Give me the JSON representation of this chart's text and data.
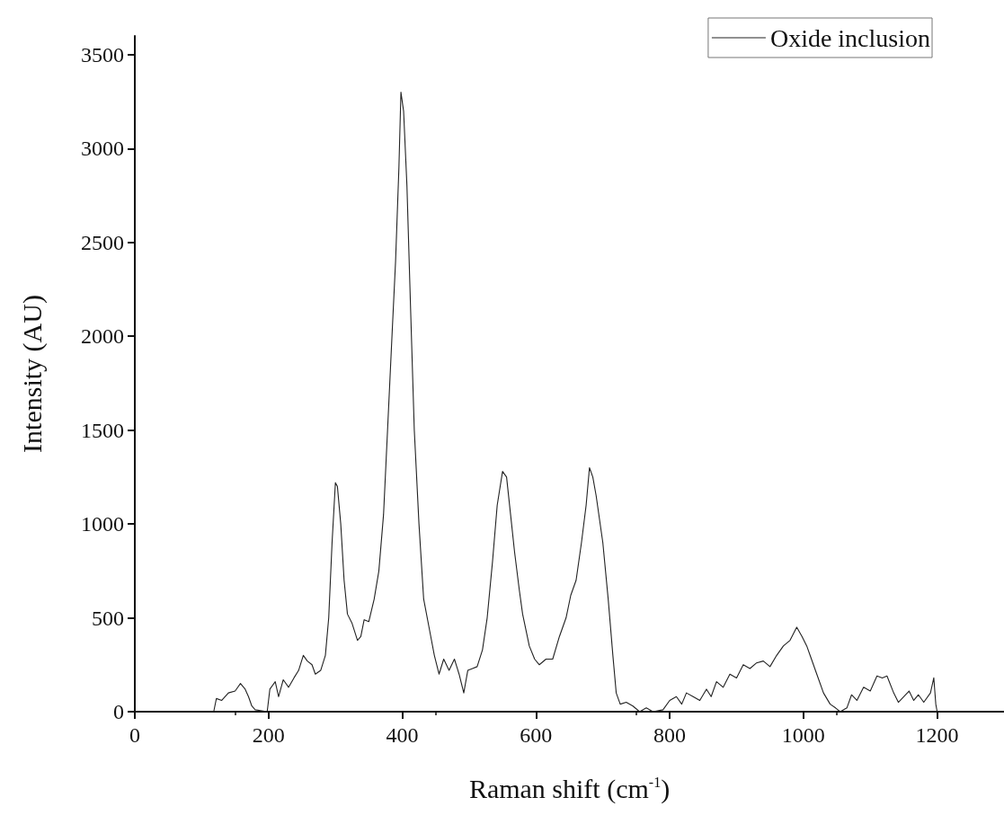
{
  "chart_data": {
    "type": "line",
    "xlabel": "Raman shift (cm$^{-1}$)",
    "ylabel": "Intensity (AU)",
    "xlim": [
      0,
      1300
    ],
    "xticks": [
      0,
      200,
      400,
      600,
      800,
      1000,
      1200
    ],
    "ylim": [
      0,
      3600
    ],
    "yticks": [
      0,
      500,
      1000,
      1500,
      2000,
      2500,
      3000,
      3500
    ],
    "grid": false,
    "legend": "top right",
    "marker": "none",
    "line_style": "solid",
    "series": [
      {
        "name": "Oxide inclusion",
        "color": "#222222",
        "x": [
          118,
          122,
          130,
          140,
          150,
          158,
          165,
          170,
          175,
          180,
          190,
          198,
          202,
          210,
          215,
          222,
          230,
          238,
          245,
          252,
          258,
          265,
          270,
          278,
          285,
          290,
          295,
          300,
          303,
          308,
          313,
          318,
          325,
          333,
          338,
          343,
          350,
          358,
          365,
          372,
          378,
          385,
          390,
          395,
          398,
          402,
          407,
          412,
          418,
          425,
          432,
          440,
          448,
          455,
          462,
          470,
          478,
          485,
          492,
          498,
          505,
          512,
          520,
          527,
          535,
          542,
          550,
          556,
          562,
          568,
          575,
          580,
          590,
          598,
          605,
          615,
          625,
          635,
          645,
          652,
          660,
          668,
          675,
          680,
          685,
          690,
          700,
          708,
          715,
          720,
          726,
          735,
          745,
          755,
          765,
          775,
          790,
          800,
          810,
          818,
          825,
          835,
          845,
          855,
          862,
          870,
          880,
          890,
          900,
          910,
          920,
          930,
          940,
          950,
          960,
          970,
          980,
          990,
          998,
          1005,
          1012,
          1020,
          1030,
          1040,
          1048,
          1055,
          1065,
          1072,
          1080,
          1090,
          1100,
          1110,
          1118,
          1125,
          1135,
          1142,
          1150,
          1158,
          1165,
          1172,
          1180,
          1190,
          1195,
          1198,
          1200
        ],
        "values": [
          0,
          70,
          60,
          100,
          110,
          150,
          120,
          80,
          30,
          10,
          5,
          0,
          120,
          160,
          80,
          170,
          130,
          180,
          220,
          300,
          270,
          250,
          200,
          220,
          300,
          500,
          900,
          1220,
          1200,
          1000,
          700,
          520,
          470,
          380,
          400,
          490,
          480,
          600,
          750,
          1050,
          1500,
          2030,
          2400,
          2900,
          3300,
          3200,
          2800,
          2200,
          1500,
          1000,
          600,
          450,
          300,
          200,
          280,
          220,
          280,
          200,
          100,
          220,
          230,
          240,
          330,
          500,
          800,
          1100,
          1280,
          1250,
          1050,
          850,
          650,
          520,
          350,
          280,
          250,
          280,
          280,
          400,
          500,
          620,
          700,
          900,
          1100,
          1300,
          1250,
          1150,
          900,
          600,
          300,
          100,
          40,
          50,
          30,
          0,
          20,
          0,
          10,
          60,
          80,
          40,
          100,
          80,
          60,
          120,
          80,
          160,
          130,
          200,
          180,
          250,
          230,
          260,
          270,
          240,
          300,
          350,
          380,
          450,
          400,
          350,
          280,
          200,
          100,
          40,
          20,
          0,
          20,
          90,
          60,
          130,
          110,
          190,
          180,
          190,
          100,
          50,
          80,
          110,
          60,
          90,
          50,
          100,
          180,
          40,
          0
        ]
      }
    ]
  }
}
